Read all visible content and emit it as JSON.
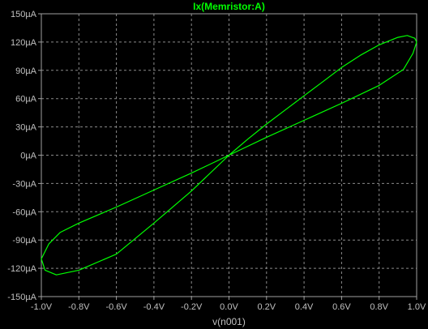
{
  "chart_data": {
    "type": "line",
    "title": "Ix(Memristor:A)",
    "xlabel": "v(n001)",
    "ylabel": "",
    "xlim": [
      -1.0,
      1.0
    ],
    "ylim": [
      -150,
      150
    ],
    "x_ticks": [
      "-1.0V",
      "-0.8V",
      "-0.6V",
      "-0.4V",
      "-0.2V",
      "0.0V",
      "0.2V",
      "0.4V",
      "0.6V",
      "0.8V",
      "1.0V"
    ],
    "y_ticks": [
      "150µA",
      "120µA",
      "90µA",
      "60µA",
      "30µA",
      "0µA",
      "-30µA",
      "-60µA",
      "-90µA",
      "-120µA",
      "-150µA"
    ],
    "grid": true,
    "legend": "none",
    "series": [
      {
        "name": "Ix(Memristor:A)",
        "color": "#00ff00",
        "x": [
          0.0,
          0.1,
          0.2,
          0.3,
          0.4,
          0.5,
          0.6,
          0.7,
          0.8,
          0.9,
          0.95,
          0.99,
          1.0,
          0.98,
          0.93,
          0.8,
          0.6,
          0.4,
          0.2,
          0.0,
          -0.2,
          -0.4,
          -0.6,
          -0.8,
          -0.9,
          -0.96,
          -1.0,
          -0.98,
          -0.92,
          -0.8,
          -0.6,
          -0.4,
          -0.2,
          0.0
        ],
        "y": [
          0,
          17,
          33,
          48,
          63,
          78,
          93,
          106,
          117,
          125,
          127,
          124,
          120,
          108,
          91,
          74,
          55,
          37,
          19,
          0,
          -19,
          -37,
          -55,
          -72,
          -82,
          -94,
          -110,
          -122,
          -127,
          -122,
          -105,
          -72,
          -38,
          0
        ],
        "unit_x": "V",
        "unit_y": "µA"
      }
    ]
  }
}
